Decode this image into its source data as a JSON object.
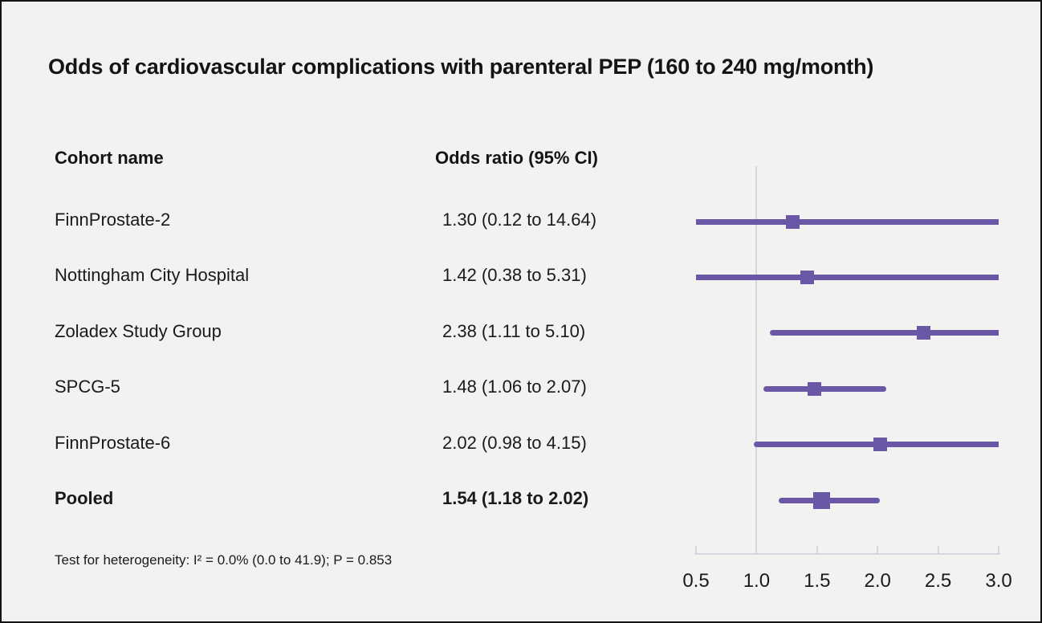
{
  "title": "Odds of cardiovascular complications with parenteral PEP (160 to 240 mg/month)",
  "table": {
    "cohort_header": "Cohort name",
    "odds_header": "Odds ratio (95% CI)"
  },
  "footnote": "Test for heterogeneity: I² = 0.0% (0.0 to 41.9); P = 0.853",
  "colors": {
    "background": "#f2f2f1",
    "frame": "#141414",
    "marker": "#6a57a6",
    "ci_line": "#6a57a6",
    "axis": "#d3d8df",
    "reference_line": "#d3d8df",
    "text": "#1a1a1a"
  },
  "chart_data": {
    "type": "forest",
    "title": "Odds of cardiovascular complications with parenteral PEP (160 to 240 mg/month)",
    "xlabel": "Odds ratio",
    "xlim": [
      0.5,
      3.0
    ],
    "x_ticks": [
      0.5,
      1.0,
      1.5,
      2.0,
      2.5,
      3.0
    ],
    "x_tick_labels": [
      "0.5",
      "1.0",
      "1.5",
      "2.0",
      "2.5",
      "3.0"
    ],
    "reference_line": 1.0,
    "grid": false,
    "rows": [
      {
        "label": "FinnProstate-2",
        "display": "1.30 (0.12 to 14.64)",
        "or": 1.3,
        "ci_low": 0.12,
        "ci_high": 14.64,
        "bold": false
      },
      {
        "label": "Nottingham City Hospital",
        "display": "1.42 (0.38 to 5.31)",
        "or": 1.42,
        "ci_low": 0.38,
        "ci_high": 5.31,
        "bold": false
      },
      {
        "label": "Zoladex Study Group",
        "display": "2.38 (1.11 to 5.10)",
        "or": 2.38,
        "ci_low": 1.11,
        "ci_high": 5.1,
        "bold": false
      },
      {
        "label": "SPCG-5",
        "display": "1.48 (1.06 to 2.07)",
        "or": 1.48,
        "ci_low": 1.06,
        "ci_high": 2.07,
        "bold": false
      },
      {
        "label": "FinnProstate-6",
        "display": "2.02 (0.98 to 4.15)",
        "or": 2.02,
        "ci_low": 0.98,
        "ci_high": 4.15,
        "bold": false
      },
      {
        "label": "Pooled",
        "display": "1.54 (1.18 to 2.02)",
        "or": 1.54,
        "ci_low": 1.18,
        "ci_high": 2.02,
        "bold": true
      }
    ]
  }
}
